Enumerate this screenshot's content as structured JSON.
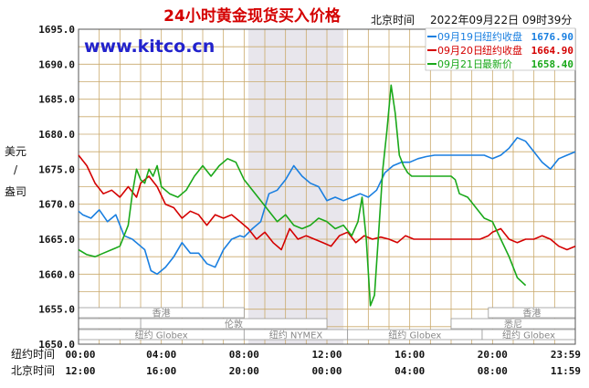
{
  "header": {
    "title": "24小时黄金现货买入价格",
    "timezone_label": "北京时间",
    "timestamp": "2022年09月22日 09时39分"
  },
  "watermark": "www.kitco.cn",
  "y_axis_label": [
    "美元",
    "/",
    "盎司"
  ],
  "x_axis": {
    "row1_label": "纽约时间",
    "row2_label": "北京时间",
    "row1_ticks": [
      "00:00",
      "04:00",
      "08:00",
      "12:00",
      "16:00",
      "20:00",
      "23:59"
    ],
    "row2_ticks": [
      "12:00",
      "16:00",
      "20:00",
      "00:00",
      "04:00",
      "08:00",
      "11:59"
    ]
  },
  "sessions": {
    "row1": [
      {
        "label": "香港",
        "start": 0,
        "end": 8
      },
      {
        "label": "香港",
        "start": 19.8,
        "end": 24
      }
    ],
    "row2": [
      {
        "label": "伦敦",
        "start": 3,
        "end": 12
      },
      {
        "label": "悉尼",
        "start": 18,
        "end": 24
      }
    ],
    "row3": [
      {
        "label": "纽约 Globex",
        "start": 0,
        "end": 8
      },
      {
        "label": "纽约 NYMEX",
        "start": 8,
        "end": 13
      },
      {
        "label": "纽约 Globex",
        "start": 13,
        "end": 19.5
      },
      {
        "label": "纽约 Globex",
        "start": 19.5,
        "end": 24
      }
    ],
    "nymex_shade": {
      "start": 8.2,
      "end": 12.8
    }
  },
  "colors": {
    "background": "#ffffff",
    "grid": "#c9a96b",
    "title": "#d40000",
    "watermark": "#2222cc",
    "series_blue": "#1a7fe0",
    "series_red": "#d40000",
    "series_green": "#1aa81a",
    "shade": "#e8e6ec"
  },
  "chart_data": {
    "type": "line",
    "title": "24小时黄金现货买入价格",
    "ylabel": "美元/盎司",
    "xlabel": "纽约时间 / 北京时间",
    "ylim": [
      1650.0,
      1695.0
    ],
    "xlim": [
      0,
      24
    ],
    "y_ticks": [
      "1650.0",
      "1655.0",
      "1660.0",
      "1665.0",
      "1670.0",
      "1675.0",
      "1680.0",
      "1685.0",
      "1690.0",
      "1695.0"
    ],
    "grid": true,
    "legend_position": "top-right",
    "series": [
      {
        "name": "09月19日",
        "legend_label": "纽约收盘",
        "legend_value": "1676.90",
        "color": "#1a7fe0",
        "x": [
          0,
          0.2,
          0.6,
          1,
          1.4,
          1.8,
          2.2,
          2.6,
          3,
          3.2,
          3.5,
          3.8,
          4.2,
          4.6,
          5,
          5.4,
          5.8,
          6.2,
          6.6,
          7,
          7.4,
          7.8,
          8,
          8.4,
          8.8,
          9.2,
          9.6,
          10,
          10.4,
          10.8,
          11.2,
          11.6,
          12,
          12.4,
          12.8,
          13.2,
          13.6,
          14,
          14.4,
          14.8,
          15.2,
          15.6,
          16,
          16.4,
          16.8,
          17.2,
          17.6,
          18,
          18.4,
          18.8,
          19.2,
          19.6,
          20,
          20.4,
          20.8,
          21.2,
          21.6,
          22,
          22.4,
          22.8,
          23.2,
          23.6,
          24
        ],
        "values": [
          1669.0,
          1668.5,
          1668.0,
          1669.2,
          1667.5,
          1668.5,
          1665.5,
          1665.0,
          1664.0,
          1663.5,
          1660.5,
          1660.0,
          1661.0,
          1662.5,
          1664.5,
          1663.0,
          1663.0,
          1661.5,
          1661.0,
          1663.5,
          1665.0,
          1665.5,
          1665.3,
          1666.5,
          1667.5,
          1671.5,
          1672.0,
          1673.5,
          1675.5,
          1674.0,
          1673.0,
          1672.5,
          1670.5,
          1671.0,
          1670.5,
          1671.0,
          1671.5,
          1671.0,
          1672.0,
          1674.5,
          1675.5,
          1676.0,
          1676.0,
          1676.5,
          1676.8,
          1677.0,
          1677.0,
          1677.0,
          1677.0,
          1677.0,
          1677.0,
          1677.0,
          1676.5,
          1677.0,
          1678.0,
          1679.5,
          1679.0,
          1677.5,
          1676.0,
          1675.0,
          1676.5,
          1677.0,
          1677.5
        ]
      },
      {
        "name": "09月20日",
        "legend_label": "纽约收盘",
        "legend_value": "1664.90",
        "color": "#d40000",
        "x": [
          0,
          0.4,
          0.8,
          1.2,
          1.6,
          2,
          2.4,
          2.8,
          3,
          3.4,
          3.8,
          4.2,
          4.6,
          5,
          5.4,
          5.8,
          6.2,
          6.6,
          7,
          7.4,
          7.8,
          8.2,
          8.6,
          9,
          9.4,
          9.8,
          10.2,
          10.6,
          11,
          11.4,
          11.8,
          12.2,
          12.6,
          13,
          13.4,
          13.8,
          14.2,
          14.6,
          15,
          15.4,
          15.8,
          16.2,
          16.6,
          17,
          17.4,
          17.8,
          18.2,
          18.6,
          19,
          19.4,
          19.8,
          20,
          20.4,
          20.8,
          21.2,
          21.6,
          22,
          22.4,
          22.8,
          23.2,
          23.6,
          24
        ],
        "values": [
          1677.0,
          1675.5,
          1673.0,
          1671.5,
          1672.0,
          1671.0,
          1672.5,
          1671.0,
          1673.0,
          1674.0,
          1672.5,
          1670.0,
          1669.5,
          1668.0,
          1669.0,
          1668.5,
          1667.0,
          1668.5,
          1668.0,
          1668.5,
          1667.5,
          1666.5,
          1665.0,
          1666.0,
          1664.5,
          1663.5,
          1666.5,
          1665.0,
          1665.5,
          1665.0,
          1664.5,
          1664.0,
          1665.5,
          1666.0,
          1664.5,
          1665.5,
          1665.0,
          1665.3,
          1665.0,
          1664.5,
          1665.5,
          1665.0,
          1665.0,
          1665.0,
          1665.0,
          1665.0,
          1665.0,
          1665.0,
          1665.0,
          1665.0,
          1665.5,
          1666.0,
          1666.5,
          1665.0,
          1664.5,
          1665.0,
          1665.0,
          1665.5,
          1665.0,
          1664.0,
          1663.5,
          1664.0
        ]
      },
      {
        "name": "09月21日",
        "legend_label": "最新价",
        "legend_value": "1658.40",
        "color": "#1aa81a",
        "x": [
          0,
          0.4,
          0.8,
          1.2,
          1.6,
          2,
          2.2,
          2.4,
          2.6,
          2.8,
          3,
          3.2,
          3.4,
          3.6,
          3.8,
          4,
          4.4,
          4.8,
          5.2,
          5.6,
          6,
          6.4,
          6.8,
          7.2,
          7.6,
          8,
          8.4,
          8.8,
          9.2,
          9.6,
          10,
          10.4,
          10.8,
          11.2,
          11.6,
          12,
          12.4,
          12.8,
          13.2,
          13.5,
          13.7,
          13.9,
          14.1,
          14.3,
          14.5,
          14.7,
          14.9,
          15.1,
          15.3,
          15.5,
          15.7,
          15.9,
          16.1,
          16.3,
          16.6,
          17,
          17.4,
          17.8,
          18,
          18.2,
          18.4,
          18.8,
          19.2,
          19.6,
          20,
          20.4,
          20.8,
          21.2,
          21.6
        ],
        "values": [
          1663.5,
          1662.8,
          1662.5,
          1663.0,
          1663.5,
          1664.0,
          1665.5,
          1667.0,
          1671.5,
          1675.0,
          1673.5,
          1673.0,
          1675.0,
          1674.0,
          1675.5,
          1672.5,
          1671.5,
          1671.0,
          1672.0,
          1674.0,
          1675.5,
          1674.0,
          1675.5,
          1676.5,
          1676.0,
          1673.5,
          1672.0,
          1670.5,
          1669.0,
          1667.5,
          1668.5,
          1667.0,
          1666.5,
          1667.0,
          1668.0,
          1667.5,
          1666.5,
          1667.0,
          1665.5,
          1667.5,
          1671.0,
          1665.0,
          1655.5,
          1657.0,
          1666.0,
          1675.0,
          1680.5,
          1687.0,
          1683.0,
          1677.0,
          1675.5,
          1674.5,
          1674.0,
          1674.0,
          1674.0,
          1674.0,
          1674.0,
          1674.0,
          1674.0,
          1673.5,
          1671.5,
          1671.0,
          1669.5,
          1668.0,
          1667.5,
          1665.0,
          1662.5,
          1659.5,
          1658.4
        ]
      }
    ]
  }
}
